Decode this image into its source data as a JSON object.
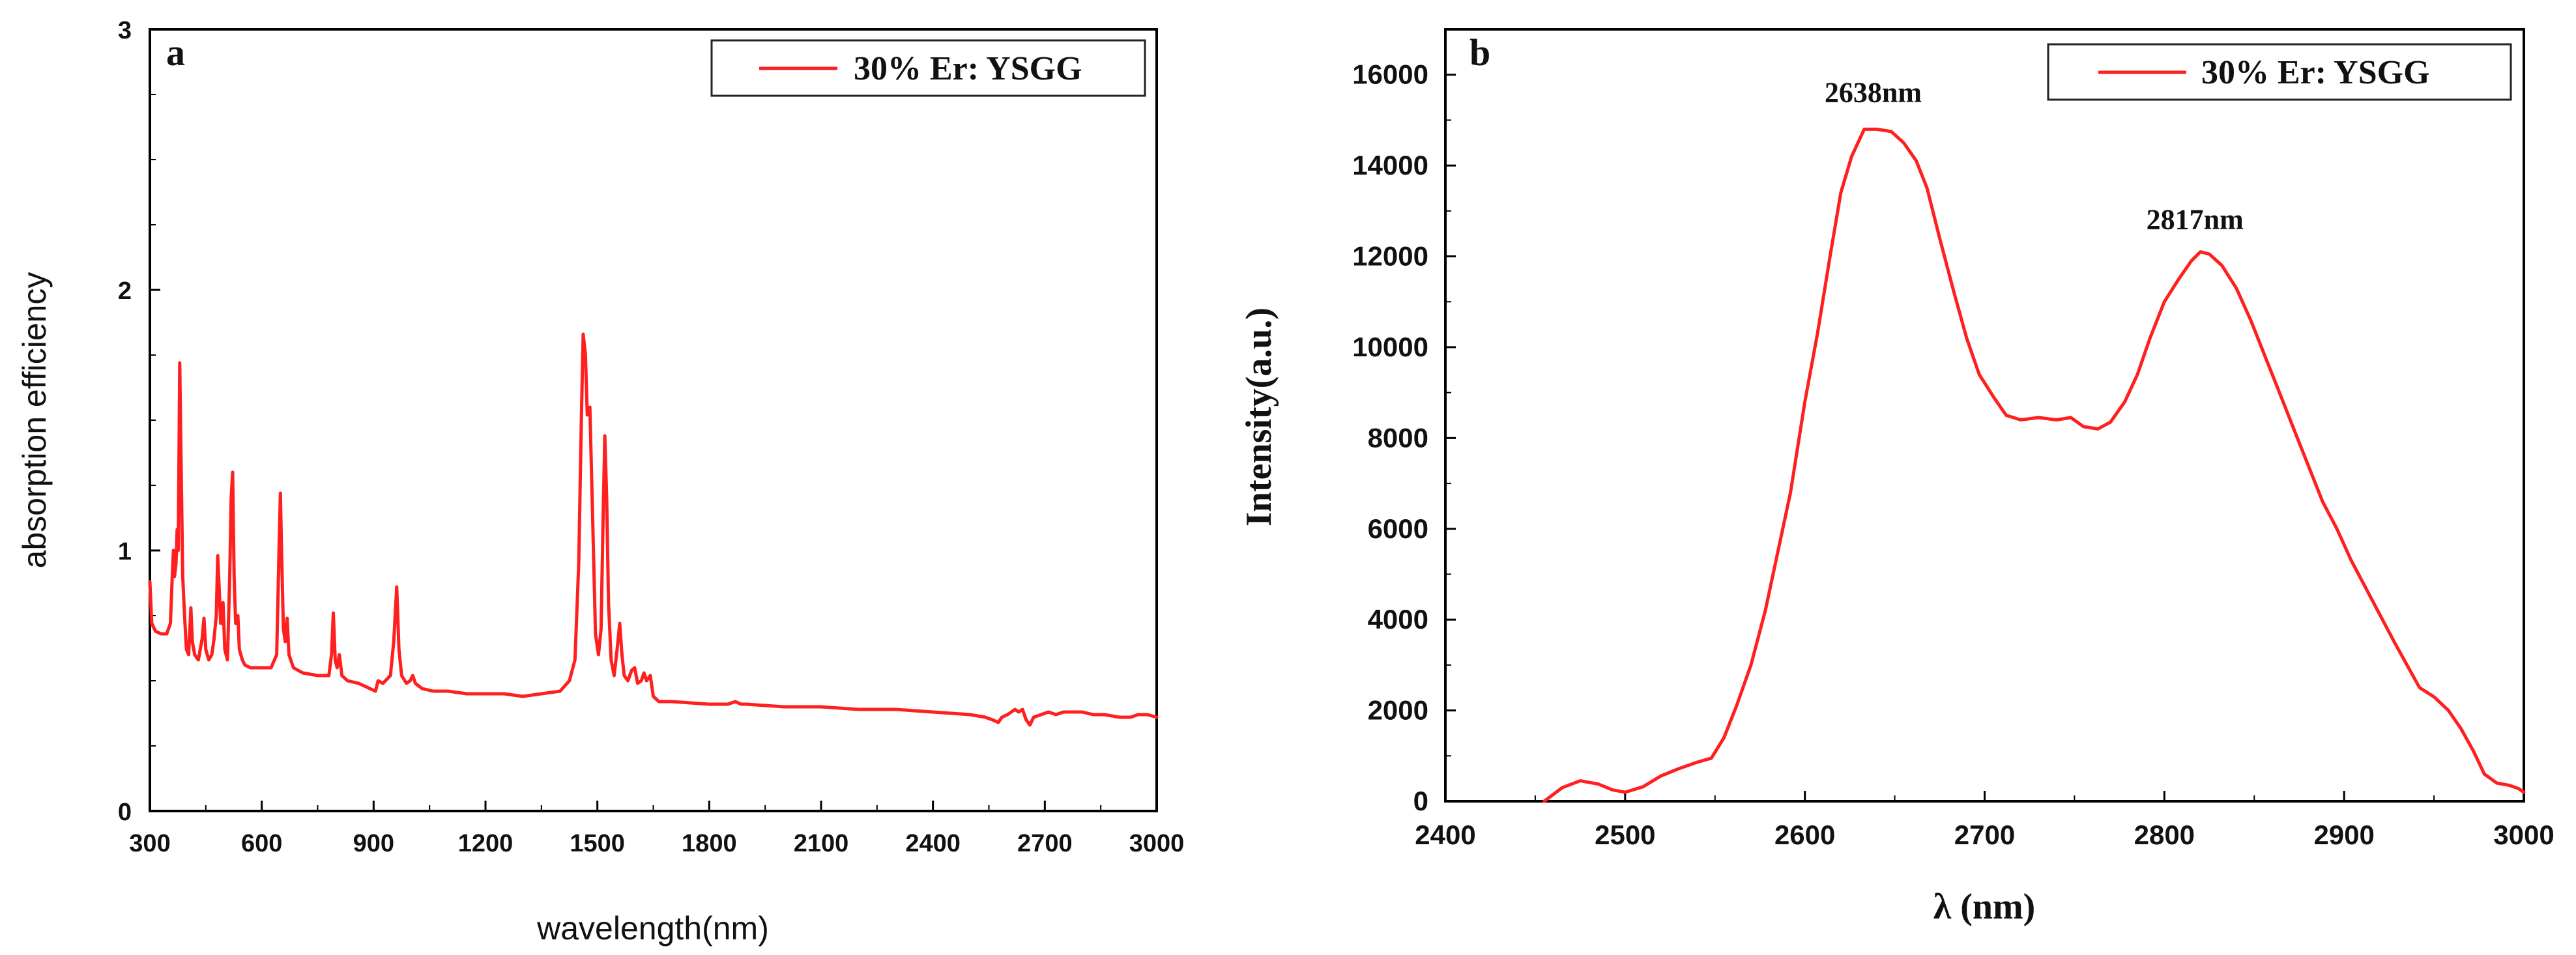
{
  "chart_data": [
    {
      "id": "a",
      "type": "line",
      "panel_label": "a",
      "xlabel": "wavelength(nm)",
      "ylabel": "absorption efficiency",
      "xlim": [
        300,
        3000
      ],
      "ylim": [
        0,
        3
      ],
      "x_ticks": [
        300,
        600,
        900,
        1200,
        1500,
        1800,
        2100,
        2400,
        2700,
        3000
      ],
      "x_tick_labels": [
        "300",
        "600",
        "900",
        "1200",
        "1500",
        "1800",
        "2100",
        "2400",
        "2700",
        "3000"
      ],
      "y_ticks": [
        0,
        1,
        2,
        3
      ],
      "y_tick_labels": [
        "0",
        "1",
        "2",
        "3"
      ],
      "legend": {
        "label": "30% Er: YSGG",
        "placement": "top-right"
      },
      "line_color": "#ff1f1f",
      "series": [
        {
          "name": "30% Er: YSGG",
          "points": [
            [
              300,
              0.88
            ],
            [
              305,
              0.72
            ],
            [
              315,
              0.69
            ],
            [
              330,
              0.68
            ],
            [
              345,
              0.68
            ],
            [
              355,
              0.72
            ],
            [
              360,
              0.9
            ],
            [
              363,
              1.0
            ],
            [
              366,
              0.9
            ],
            [
              370,
              0.95
            ],
            [
              373,
              1.08
            ],
            [
              376,
              1.0
            ],
            [
              380,
              1.72
            ],
            [
              384,
              1.3
            ],
            [
              388,
              0.9
            ],
            [
              393,
              0.75
            ],
            [
              398,
              0.62
            ],
            [
              404,
              0.6
            ],
            [
              410,
              0.78
            ],
            [
              414,
              0.65
            ],
            [
              420,
              0.6
            ],
            [
              430,
              0.58
            ],
            [
              440,
              0.66
            ],
            [
              445,
              0.74
            ],
            [
              450,
              0.62
            ],
            [
              458,
              0.58
            ],
            [
              466,
              0.6
            ],
            [
              472,
              0.66
            ],
            [
              478,
              0.75
            ],
            [
              482,
              0.98
            ],
            [
              486,
              0.85
            ],
            [
              490,
              0.72
            ],
            [
              496,
              0.8
            ],
            [
              501,
              0.62
            ],
            [
              508,
              0.58
            ],
            [
              514,
              0.9
            ],
            [
              518,
              1.2
            ],
            [
              522,
              1.3
            ],
            [
              526,
              0.9
            ],
            [
              530,
              0.72
            ],
            [
              536,
              0.75
            ],
            [
              540,
              0.62
            ],
            [
              548,
              0.58
            ],
            [
              555,
              0.56
            ],
            [
              570,
              0.55
            ],
            [
              600,
              0.55
            ],
            [
              625,
              0.55
            ],
            [
              640,
              0.6
            ],
            [
              647,
              1.05
            ],
            [
              650,
              1.22
            ],
            [
              653,
              1.0
            ],
            [
              658,
              0.7
            ],
            [
              663,
              0.65
            ],
            [
              668,
              0.74
            ],
            [
              673,
              0.6
            ],
            [
              685,
              0.55
            ],
            [
              710,
              0.53
            ],
            [
              750,
              0.52
            ],
            [
              780,
              0.52
            ],
            [
              787,
              0.6
            ],
            [
              792,
              0.76
            ],
            [
              797,
              0.58
            ],
            [
              802,
              0.55
            ],
            [
              808,
              0.6
            ],
            [
              815,
              0.52
            ],
            [
              830,
              0.5
            ],
            [
              860,
              0.49
            ],
            [
              890,
              0.47
            ],
            [
              905,
              0.46
            ],
            [
              912,
              0.5
            ],
            [
              925,
              0.49
            ],
            [
              945,
              0.52
            ],
            [
              954,
              0.65
            ],
            [
              962,
              0.86
            ],
            [
              968,
              0.62
            ],
            [
              975,
              0.52
            ],
            [
              988,
              0.49
            ],
            [
              998,
              0.5
            ],
            [
              1005,
              0.52
            ],
            [
              1012,
              0.49
            ],
            [
              1030,
              0.47
            ],
            [
              1060,
              0.46
            ],
            [
              1100,
              0.46
            ],
            [
              1150,
              0.45
            ],
            [
              1200,
              0.45
            ],
            [
              1250,
              0.45
            ],
            [
              1300,
              0.44
            ],
            [
              1350,
              0.45
            ],
            [
              1400,
              0.46
            ],
            [
              1425,
              0.5
            ],
            [
              1440,
              0.58
            ],
            [
              1450,
              0.95
            ],
            [
              1457,
              1.5
            ],
            [
              1462,
              1.83
            ],
            [
              1468,
              1.75
            ],
            [
              1473,
              1.52
            ],
            [
              1480,
              1.55
            ],
            [
              1487,
              1.15
            ],
            [
              1495,
              0.68
            ],
            [
              1503,
              0.6
            ],
            [
              1510,
              0.7
            ],
            [
              1515,
              1.1
            ],
            [
              1520,
              1.44
            ],
            [
              1525,
              1.2
            ],
            [
              1530,
              0.8
            ],
            [
              1537,
              0.58
            ],
            [
              1545,
              0.52
            ],
            [
              1553,
              0.62
            ],
            [
              1560,
              0.72
            ],
            [
              1566,
              0.6
            ],
            [
              1572,
              0.52
            ],
            [
              1582,
              0.5
            ],
            [
              1592,
              0.54
            ],
            [
              1600,
              0.55
            ],
            [
              1608,
              0.49
            ],
            [
              1618,
              0.5
            ],
            [
              1625,
              0.53
            ],
            [
              1632,
              0.5
            ],
            [
              1642,
              0.52
            ],
            [
              1650,
              0.44
            ],
            [
              1665,
              0.42
            ],
            [
              1700,
              0.42
            ],
            [
              1800,
              0.41
            ],
            [
              1850,
              0.41
            ],
            [
              1870,
              0.42
            ],
            [
              1885,
              0.41
            ],
            [
              1900,
              0.41
            ],
            [
              2000,
              0.4
            ],
            [
              2100,
              0.4
            ],
            [
              2200,
              0.39
            ],
            [
              2300,
              0.39
            ],
            [
              2400,
              0.38
            ],
            [
              2500,
              0.37
            ],
            [
              2540,
              0.36
            ],
            [
              2560,
              0.35
            ],
            [
              2575,
              0.34
            ],
            [
              2585,
              0.36
            ],
            [
              2600,
              0.37
            ],
            [
              2620,
              0.39
            ],
            [
              2630,
              0.38
            ],
            [
              2640,
              0.39
            ],
            [
              2650,
              0.35
            ],
            [
              2660,
              0.33
            ],
            [
              2670,
              0.36
            ],
            [
              2690,
              0.37
            ],
            [
              2710,
              0.38
            ],
            [
              2730,
              0.37
            ],
            [
              2750,
              0.38
            ],
            [
              2780,
              0.38
            ],
            [
              2800,
              0.38
            ],
            [
              2830,
              0.37
            ],
            [
              2860,
              0.37
            ],
            [
              2900,
              0.36
            ],
            [
              2930,
              0.36
            ],
            [
              2950,
              0.37
            ],
            [
              2975,
              0.37
            ],
            [
              3000,
              0.36
            ]
          ]
        }
      ]
    },
    {
      "id": "b",
      "type": "line",
      "panel_label": "b",
      "xlabel": "λ (nm)",
      "ylabel": "Intensity(a.u.)",
      "xlim": [
        2400,
        3000
      ],
      "ylim": [
        0,
        17000
      ],
      "x_ticks": [
        2400,
        2500,
        2600,
        2700,
        2800,
        2900,
        3000
      ],
      "x_tick_labels": [
        "2400",
        "2500",
        "2600",
        "2700",
        "2800",
        "2900",
        "3000"
      ],
      "y_ticks": [
        0,
        2000,
        4000,
        6000,
        8000,
        10000,
        12000,
        14000,
        16000
      ],
      "y_tick_labels": [
        "0",
        "2000",
        "4000",
        "6000",
        "8000",
        "10000",
        "12000",
        "14000",
        "16000"
      ],
      "legend": {
        "label": "30% Er: YSGG",
        "placement": "top-right"
      },
      "annotations": [
        {
          "text": "2638nm",
          "x": 2638,
          "y": 15400
        },
        {
          "text": "2817nm",
          "x": 2817,
          "y": 12600
        }
      ],
      "line_color": "#ff1f1f",
      "series": [
        {
          "name": "30% Er: YSGG",
          "points": [
            [
              2455,
              0
            ],
            [
              2465,
              300
            ],
            [
              2475,
              450
            ],
            [
              2485,
              380
            ],
            [
              2493,
              250
            ],
            [
              2500,
              200
            ],
            [
              2510,
              320
            ],
            [
              2520,
              560
            ],
            [
              2530,
              720
            ],
            [
              2540,
              860
            ],
            [
              2548,
              950
            ],
            [
              2555,
              1400
            ],
            [
              2562,
              2100
            ],
            [
              2570,
              3000
            ],
            [
              2578,
              4200
            ],
            [
              2585,
              5500
            ],
            [
              2592,
              6800
            ],
            [
              2600,
              8800
            ],
            [
              2607,
              10300
            ],
            [
              2614,
              12000
            ],
            [
              2620,
              13400
            ],
            [
              2626,
              14200
            ],
            [
              2633,
              14800
            ],
            [
              2640,
              14800
            ],
            [
              2648,
              14750
            ],
            [
              2655,
              14500
            ],
            [
              2662,
              14100
            ],
            [
              2668,
              13500
            ],
            [
              2675,
              12400
            ],
            [
              2683,
              11200
            ],
            [
              2690,
              10200
            ],
            [
              2697,
              9400
            ],
            [
              2705,
              8900
            ],
            [
              2712,
              8500
            ],
            [
              2720,
              8400
            ],
            [
              2730,
              8450
            ],
            [
              2740,
              8400
            ],
            [
              2748,
              8450
            ],
            [
              2755,
              8250
            ],
            [
              2763,
              8200
            ],
            [
              2770,
              8350
            ],
            [
              2778,
              8800
            ],
            [
              2785,
              9400
            ],
            [
              2792,
              10200
            ],
            [
              2800,
              11000
            ],
            [
              2808,
              11500
            ],
            [
              2815,
              11900
            ],
            [
              2820,
              12100
            ],
            [
              2825,
              12050
            ],
            [
              2832,
              11800
            ],
            [
              2840,
              11300
            ],
            [
              2848,
              10600
            ],
            [
              2856,
              9800
            ],
            [
              2864,
              9000
            ],
            [
              2872,
              8200
            ],
            [
              2880,
              7400
            ],
            [
              2888,
              6600
            ],
            [
              2896,
              6000
            ],
            [
              2904,
              5300
            ],
            [
              2912,
              4700
            ],
            [
              2920,
              4100
            ],
            [
              2928,
              3500
            ],
            [
              2935,
              3000
            ],
            [
              2942,
              2500
            ],
            [
              2950,
              2300
            ],
            [
              2958,
              2000
            ],
            [
              2965,
              1600
            ],
            [
              2972,
              1100
            ],
            [
              2978,
              600
            ],
            [
              2985,
              400
            ],
            [
              2992,
              350
            ],
            [
              2997,
              280
            ],
            [
              3000,
              200
            ]
          ]
        }
      ]
    }
  ]
}
